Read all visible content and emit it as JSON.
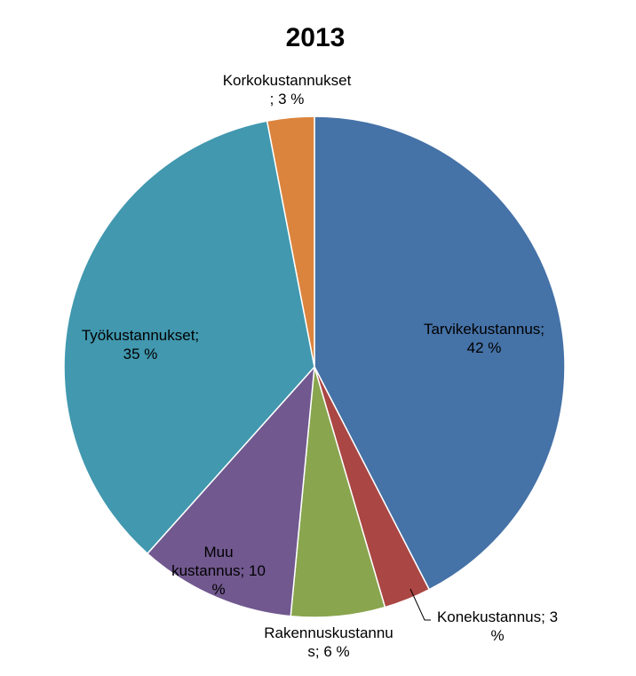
{
  "chart_data": {
    "type": "pie",
    "title": "2013",
    "slices": [
      {
        "name": "Tarvikekustannus",
        "value": 42,
        "label_lines": [
          "Tarvikekustannus;",
          "42 %"
        ],
        "color": "#4572A7"
      },
      {
        "name": "Konekustannus",
        "value": 3,
        "label_lines": [
          "Konekustannus; 3",
          "%"
        ],
        "color": "#AA4643"
      },
      {
        "name": "Rakennuskustannus",
        "value": 6,
        "label_lines": [
          "Rakennuskustannu",
          "s; 6 %"
        ],
        "color": "#89A54E"
      },
      {
        "name": "Muu kustannus",
        "value": 10,
        "label_lines": [
          "Muu",
          "kustannus; 10",
          "%"
        ],
        "color": "#71588F"
      },
      {
        "name": "Työkustannukset",
        "value": 35,
        "label_lines": [
          "Työkustannukset;",
          "35 %"
        ],
        "color": "#4198AF"
      },
      {
        "name": "Korkokustannukset",
        "value": 3,
        "label_lines": [
          "Korkokustannukset",
          "; 3 %"
        ],
        "color": "#DB843D"
      }
    ],
    "start_angle": "12 o'clock",
    "direction": "clockwise",
    "legend": "none"
  }
}
